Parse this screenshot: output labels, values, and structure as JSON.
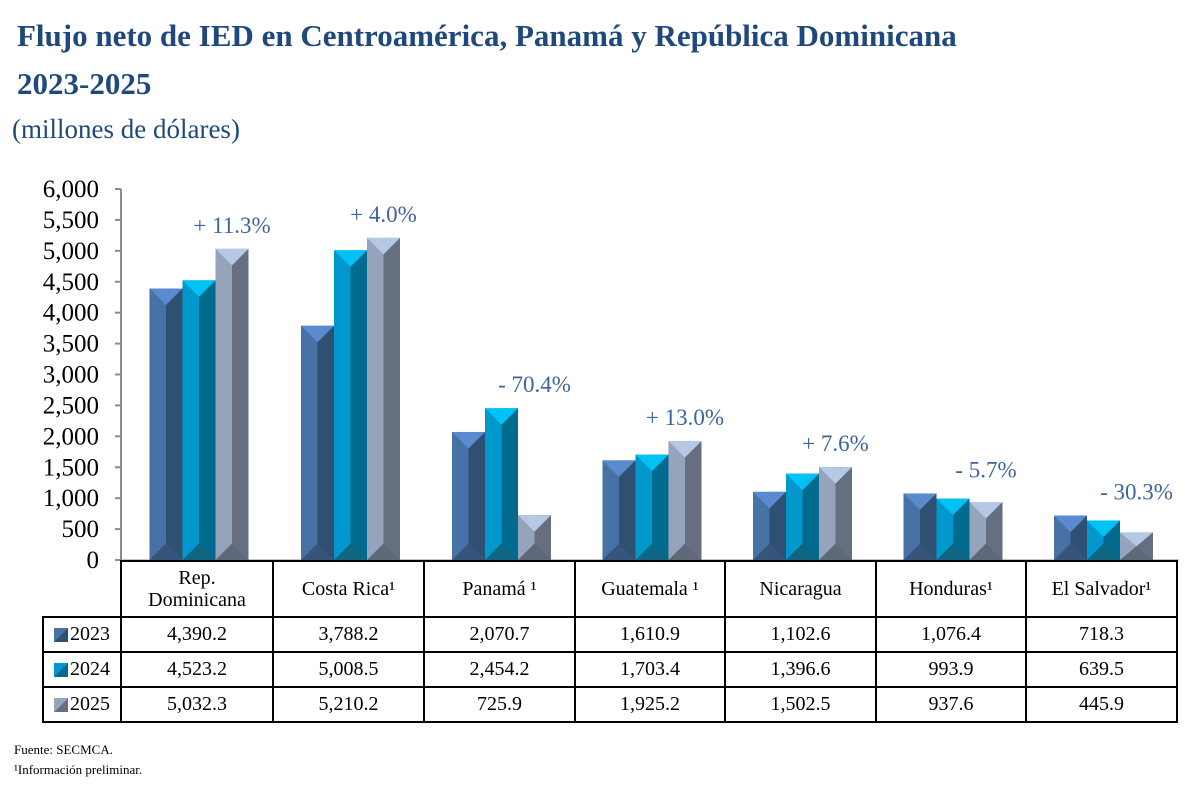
{
  "chart_data": {
    "type": "bar",
    "title": "Flujo neto de IED en Centroamérica, Panamá y República Dominicana",
    "title_line2": "2023-2025",
    "subtitle": "(millones de dólares)",
    "xlabel": "",
    "ylabel": "",
    "ylim": [
      0,
      6000
    ],
    "yticks": [
      0,
      500,
      1000,
      1500,
      2000,
      2500,
      3000,
      3500,
      4000,
      4500,
      5000,
      5500,
      6000
    ],
    "ytick_labels": [
      "0",
      "500",
      "1,000",
      "1,500",
      "2,000",
      "2,500",
      "3,000",
      "3,500",
      "4,000",
      "4,500",
      "5,000",
      "5,500",
      "6,000"
    ],
    "grid": false,
    "legend": "table-left",
    "categories": [
      "Rep. Dominicana",
      "Costa Rica¹",
      "Panamá ¹",
      "Guatemala ¹",
      "Nicaragua",
      "Honduras¹",
      "El Salvador¹"
    ],
    "category_lines": [
      [
        "Rep.",
        "Dominicana"
      ],
      [
        "Costa Rica¹"
      ],
      [
        "Panamá ¹"
      ],
      [
        "Guatemala ¹"
      ],
      [
        "Nicaragua"
      ],
      [
        "Honduras¹"
      ],
      [
        "El Salvador¹"
      ]
    ],
    "series": [
      {
        "name": "2023",
        "values": [
          4390.2,
          3788.2,
          2070.7,
          1610.9,
          1102.6,
          1076.4,
          718.3
        ],
        "labels": [
          "4,390.2",
          "3,788.2",
          "2,070.7",
          "1,610.9",
          "1,102.6",
          "1,076.4",
          "718.3"
        ],
        "colors": {
          "front": "#4672a5",
          "side": "#2f4f73",
          "top": "#5a8bcf",
          "bottom": "#37557a"
        }
      },
      {
        "name": "2024",
        "values": [
          4523.2,
          5008.5,
          2454.2,
          1703.4,
          1396.6,
          993.9,
          639.5
        ],
        "labels": [
          "4,523.2",
          "5,008.5",
          "2,454.2",
          "1,703.4",
          "1,396.6",
          "993.9",
          "639.5"
        ],
        "colors": {
          "front": "#0098cd",
          "side": "#006a8f",
          "top": "#00c2f5",
          "bottom": "#0f6582"
        }
      },
      {
        "name": "2025",
        "values": [
          5032.3,
          5210.2,
          725.9,
          1925.2,
          1502.5,
          937.6,
          445.9
        ],
        "labels": [
          "5,032.3",
          "5,210.2",
          "725.9",
          "1,925.2",
          "1,502.5",
          "937.6",
          "445.9"
        ],
        "colors": {
          "front": "#95a3bb",
          "side": "#656f80",
          "top": "#b7c7e6",
          "bottom": "#5e6879"
        }
      }
    ],
    "annotations": [
      "+ 11.3%",
      "+ 4.0%",
      "- 70.4%",
      "+ 13.0%",
      "+ 7.6%",
      "- 5.7%",
      "- 30.3%"
    ]
  },
  "footnotes": {
    "source": "Fuente: SECMCA.",
    "note": "¹Información preliminar."
  }
}
